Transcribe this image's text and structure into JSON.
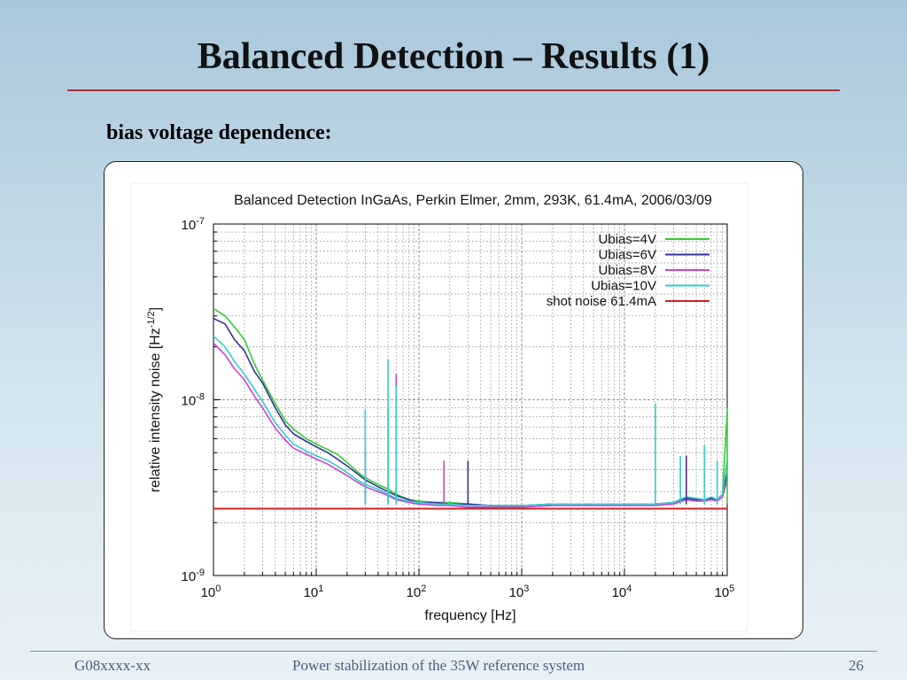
{
  "slide": {
    "title": "Balanced Detection – Results (1)",
    "subtitle": "bias voltage dependence:",
    "colors": {
      "title_rule": "#a83232"
    }
  },
  "footer": {
    "left": "G08xxxx-xx",
    "center": "Power stabilization of the 35W reference system",
    "page": "26"
  },
  "chart_data": {
    "type": "line",
    "title": "Balanced Detection InGaAs, Perkin Elmer, 2mm, 293K, 61.4mA, 2006/03/09",
    "xlabel": "frequency [Hz]",
    "ylabel": "relative intensity noise [Hz",
    "ylabel_exponent": "-1/2",
    "ylabel_suffix": "]",
    "x_scale": "log",
    "y_scale": "log",
    "xlim": [
      1,
      100000
    ],
    "ylim": [
      1e-09,
      1e-07
    ],
    "grid": true,
    "legend_position": "top-right",
    "x_ticks": [
      {
        "value": 1,
        "mantissa": "10",
        "exponent": "0"
      },
      {
        "value": 10,
        "mantissa": "10",
        "exponent": "1"
      },
      {
        "value": 100,
        "mantissa": "10",
        "exponent": "2"
      },
      {
        "value": 1000,
        "mantissa": "10",
        "exponent": "3"
      },
      {
        "value": 10000,
        "mantissa": "10",
        "exponent": "4"
      },
      {
        "value": 100000,
        "mantissa": "10",
        "exponent": "5"
      }
    ],
    "y_ticks": [
      {
        "value": 1e-09,
        "mantissa": "10",
        "exponent": "-9"
      },
      {
        "value": 1e-08,
        "mantissa": "10",
        "exponent": "-8"
      },
      {
        "value": 1e-07,
        "mantissa": "10",
        "exponent": "-7"
      }
    ],
    "series": [
      {
        "name": "Ubias=4V",
        "color": "#33cc33",
        "x": [
          1,
          1.3,
          1.6,
          2,
          2.5,
          3,
          4,
          5,
          6,
          8,
          10,
          13,
          16,
          20,
          25,
          30,
          40,
          50,
          60,
          80,
          100,
          150,
          200,
          300,
          500,
          700,
          1000,
          2000,
          3000,
          5000,
          10000,
          20000,
          30000,
          40000,
          50000,
          60000,
          70000,
          80000,
          90000,
          100000
        ],
        "y": [
          3.3e-08,
          3e-08,
          2.6e-08,
          2.2e-08,
          1.6e-08,
          1.3e-08,
          9.5e-09,
          7.6e-09,
          6.8e-09,
          6e-09,
          5.6e-09,
          5.2e-09,
          4.9e-09,
          4.4e-09,
          3.9e-09,
          3.6e-09,
          3.3e-09,
          3.1e-09,
          2.9e-09,
          2.7e-09,
          2.65e-09,
          2.6e-09,
          2.6e-09,
          2.55e-09,
          2.5e-09,
          2.5e-09,
          2.5e-09,
          2.55e-09,
          2.55e-09,
          2.55e-09,
          2.55e-09,
          2.55e-09,
          2.6e-09,
          2.8e-09,
          2.75e-09,
          2.7e-09,
          2.8e-09,
          2.7e-09,
          2.9e-09,
          8.5e-09
        ]
      },
      {
        "name": "Ubias=6V",
        "color": "#333399",
        "x": [
          1,
          1.3,
          1.6,
          2,
          2.5,
          3,
          4,
          5,
          6,
          8,
          10,
          13,
          16,
          20,
          25,
          30,
          40,
          50,
          60,
          80,
          100,
          150,
          200,
          300,
          500,
          700,
          1000,
          2000,
          3000,
          5000,
          10000,
          20000,
          30000,
          40000,
          50000,
          60000,
          70000,
          80000,
          90000,
          100000
        ],
        "y": [
          2.9e-08,
          2.7e-08,
          2.2e-08,
          1.9e-08,
          1.45e-08,
          1.25e-08,
          9e-09,
          7.2e-09,
          6.4e-09,
          5.8e-09,
          5.4e-09,
          5e-09,
          4.6e-09,
          4.2e-09,
          3.8e-09,
          3.5e-09,
          3.2e-09,
          3e-09,
          2.85e-09,
          2.7e-09,
          2.6e-09,
          2.6e-09,
          2.55e-09,
          2.55e-09,
          2.5e-09,
          2.5e-09,
          2.5e-09,
          2.55e-09,
          2.55e-09,
          2.55e-09,
          2.55e-09,
          2.55e-09,
          2.6e-09,
          2.75e-09,
          2.7e-09,
          2.7e-09,
          2.75e-09,
          2.7e-09,
          2.9e-09,
          3.8e-09
        ]
      },
      {
        "name": "Ubias=8V",
        "color": "#cc44cc",
        "x": [
          1,
          1.3,
          1.6,
          2,
          2.5,
          3,
          4,
          5,
          6,
          8,
          10,
          13,
          16,
          20,
          25,
          30,
          40,
          50,
          60,
          80,
          100,
          150,
          200,
          300,
          500,
          700,
          1000,
          2000,
          3000,
          5000,
          10000,
          20000,
          30000,
          40000,
          50000,
          60000,
          70000,
          80000,
          90000,
          100000
        ],
        "y": [
          2.1e-08,
          1.8e-08,
          1.5e-08,
          1.3e-08,
          1.05e-08,
          9e-09,
          6.9e-09,
          5.9e-09,
          5.3e-09,
          4.9e-09,
          4.6e-09,
          4.3e-09,
          4e-09,
          3.7e-09,
          3.4e-09,
          3.2e-09,
          3e-09,
          2.85e-09,
          2.7e-09,
          2.6e-09,
          2.55e-09,
          2.5e-09,
          2.5e-09,
          2.45e-09,
          2.45e-09,
          2.45e-09,
          2.45e-09,
          2.5e-09,
          2.5e-09,
          2.5e-09,
          2.5e-09,
          2.5e-09,
          2.55e-09,
          2.7e-09,
          2.65e-09,
          2.65e-09,
          2.7e-09,
          2.65e-09,
          2.8e-09,
          3.5e-09
        ]
      },
      {
        "name": "Ubias=10V",
        "color": "#33cccc",
        "x": [
          1,
          1.3,
          1.6,
          2,
          2.5,
          3,
          4,
          5,
          6,
          8,
          10,
          13,
          16,
          20,
          25,
          30,
          40,
          50,
          60,
          80,
          100,
          150,
          200,
          300,
          500,
          700,
          1000,
          2000,
          3000,
          5000,
          10000,
          20000,
          30000,
          40000,
          50000,
          60000,
          70000,
          80000,
          90000,
          100000
        ],
        "y": [
          2.3e-08,
          2e-08,
          1.65e-08,
          1.4e-08,
          1.15e-08,
          9.8e-09,
          7.4e-09,
          6.3e-09,
          5.6e-09,
          5.1e-09,
          4.8e-09,
          4.5e-09,
          4.2e-09,
          3.85e-09,
          3.5e-09,
          3.3e-09,
          3.1e-09,
          2.9e-09,
          2.75e-09,
          2.65e-09,
          2.6e-09,
          2.55e-09,
          2.55e-09,
          2.5e-09,
          2.5e-09,
          2.5e-09,
          2.5e-09,
          2.55e-09,
          2.55e-09,
          2.55e-09,
          2.55e-09,
          2.55e-09,
          2.6e-09,
          2.8e-09,
          2.75e-09,
          2.7e-09,
          2.8e-09,
          2.7e-09,
          2.9e-09,
          4.5e-09
        ]
      },
      {
        "name": "shot noise 61.4mA",
        "color": "#cc2222",
        "x": [
          1,
          100000
        ],
        "y": [
          2.4e-09,
          2.4e-09
        ]
      }
    ],
    "annotations": [
      {
        "series": "Ubias=4V",
        "x": 50,
        "y": 9e-09
      },
      {
        "series": "Ubias=4V",
        "x": 100000,
        "y": 9e-09
      },
      {
        "series": "Ubias=6V",
        "x": 30,
        "y": 5e-09
      },
      {
        "series": "Ubias=6V",
        "x": 300,
        "y": 4.5e-09
      },
      {
        "series": "Ubias=6V",
        "x": 40000,
        "y": 4.8e-09
      },
      {
        "series": "Ubias=8V",
        "x": 60,
        "y": 1.4e-08
      },
      {
        "series": "Ubias=8V",
        "x": 175,
        "y": 4.5e-09
      },
      {
        "series": "Ubias=10V",
        "x": 30,
        "y": 8.8e-09
      },
      {
        "series": "Ubias=10V",
        "x": 50,
        "y": 1.7e-08
      },
      {
        "series": "Ubias=10V",
        "x": 60,
        "y": 1.2e-08
      },
      {
        "series": "Ubias=10V",
        "x": 20000,
        "y": 9.5e-09
      },
      {
        "series": "Ubias=10V",
        "x": 35000,
        "y": 4.8e-09
      },
      {
        "series": "Ubias=10V",
        "x": 60000,
        "y": 5.5e-09
      },
      {
        "series": "Ubias=10V",
        "x": 80000,
        "y": 4.5e-09
      }
    ]
  }
}
